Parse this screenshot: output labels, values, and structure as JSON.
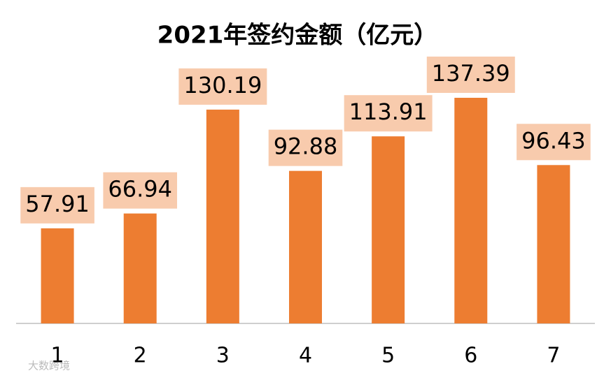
{
  "chart_data": {
    "type": "bar",
    "title": "2021年签约金额（亿元）",
    "categories": [
      "1",
      "2",
      "3",
      "4",
      "5",
      "6",
      "7"
    ],
    "values": [
      57.91,
      66.94,
      130.19,
      92.88,
      113.91,
      137.39,
      96.43
    ],
    "color": "#ed7d31",
    "label_box_color": "#f8cbad"
  },
  "watermark": "大数跨境"
}
